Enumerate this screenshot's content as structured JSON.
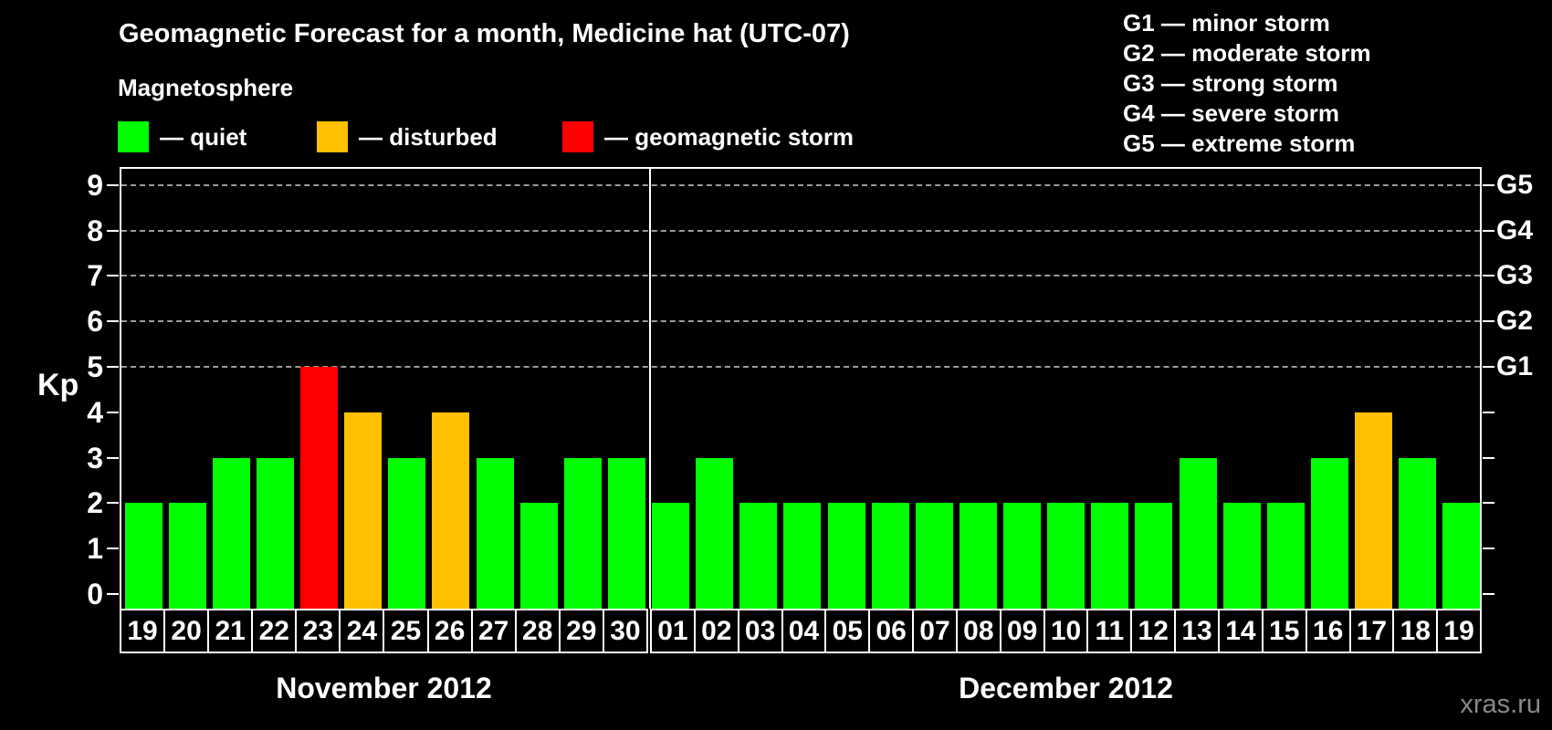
{
  "header": {
    "title": "Geomagnetic Forecast for a month, Medicine hat (UTC-07)",
    "subtitle": "Magnetosphere",
    "legend": [
      {
        "key": "quiet",
        "label": "— quiet"
      },
      {
        "key": "disturbed",
        "label": "— disturbed"
      },
      {
        "key": "storm",
        "label": "— geomagnetic storm"
      }
    ]
  },
  "g_legend": [
    "G1 — minor storm",
    "G2 — moderate storm",
    "G3 — strong storm",
    "G4 — severe storm",
    "G5 — extreme storm"
  ],
  "colors": {
    "quiet": "#00ff00",
    "disturbed": "#ffc000",
    "storm": "#ff0000",
    "grid": "#9b9b9b",
    "axis": "#ffffff",
    "watermark": "#8a8a8a"
  },
  "chart_data": {
    "type": "bar",
    "title": "Geomagnetic Forecast for a month, Medicine hat (UTC-07)",
    "ylabel": "Kp",
    "ylim": [
      0,
      9.4
    ],
    "y_ticks": [
      0,
      1,
      2,
      3,
      4,
      5,
      6,
      7,
      8,
      9
    ],
    "gridlines_kp": [
      5,
      6,
      7,
      8,
      9
    ],
    "right_axis": [
      {
        "label": "G5",
        "kp": 9
      },
      {
        "label": "G4",
        "kp": 8
      },
      {
        "label": "G3",
        "kp": 7
      },
      {
        "label": "G2",
        "kp": 6
      },
      {
        "label": "G1",
        "kp": 5
      }
    ],
    "legend_position": "top-left",
    "grid": "horizontal dashed at storm levels only",
    "months": [
      {
        "label": "November 2012",
        "days": [
          {
            "day": "19",
            "kp": 2,
            "state": "quiet"
          },
          {
            "day": "20",
            "kp": 2,
            "state": "quiet"
          },
          {
            "day": "21",
            "kp": 3,
            "state": "quiet"
          },
          {
            "day": "22",
            "kp": 3,
            "state": "quiet"
          },
          {
            "day": "23",
            "kp": 5,
            "state": "storm"
          },
          {
            "day": "24",
            "kp": 4,
            "state": "disturbed"
          },
          {
            "day": "25",
            "kp": 3,
            "state": "quiet"
          },
          {
            "day": "26",
            "kp": 4,
            "state": "disturbed"
          },
          {
            "day": "27",
            "kp": 3,
            "state": "quiet"
          },
          {
            "day": "28",
            "kp": 2,
            "state": "quiet"
          },
          {
            "day": "29",
            "kp": 3,
            "state": "quiet"
          },
          {
            "day": "30",
            "kp": 3,
            "state": "quiet"
          }
        ]
      },
      {
        "label": "December 2012",
        "days": [
          {
            "day": "01",
            "kp": 2,
            "state": "quiet"
          },
          {
            "day": "02",
            "kp": 3,
            "state": "quiet"
          },
          {
            "day": "03",
            "kp": 2,
            "state": "quiet"
          },
          {
            "day": "04",
            "kp": 2,
            "state": "quiet"
          },
          {
            "day": "05",
            "kp": 2,
            "state": "quiet"
          },
          {
            "day": "06",
            "kp": 2,
            "state": "quiet"
          },
          {
            "day": "07",
            "kp": 2,
            "state": "quiet"
          },
          {
            "day": "08",
            "kp": 2,
            "state": "quiet"
          },
          {
            "day": "09",
            "kp": 2,
            "state": "quiet"
          },
          {
            "day": "10",
            "kp": 2,
            "state": "quiet"
          },
          {
            "day": "11",
            "kp": 2,
            "state": "quiet"
          },
          {
            "day": "12",
            "kp": 2,
            "state": "quiet"
          },
          {
            "day": "13",
            "kp": 3,
            "state": "quiet"
          },
          {
            "day": "14",
            "kp": 2,
            "state": "quiet"
          },
          {
            "day": "15",
            "kp": 2,
            "state": "quiet"
          },
          {
            "day": "16",
            "kp": 3,
            "state": "quiet"
          },
          {
            "day": "17",
            "kp": 4,
            "state": "disturbed"
          },
          {
            "day": "18",
            "kp": 3,
            "state": "quiet"
          },
          {
            "day": "19",
            "kp": 2,
            "state": "quiet"
          }
        ]
      }
    ]
  },
  "watermark": "xras.ru"
}
